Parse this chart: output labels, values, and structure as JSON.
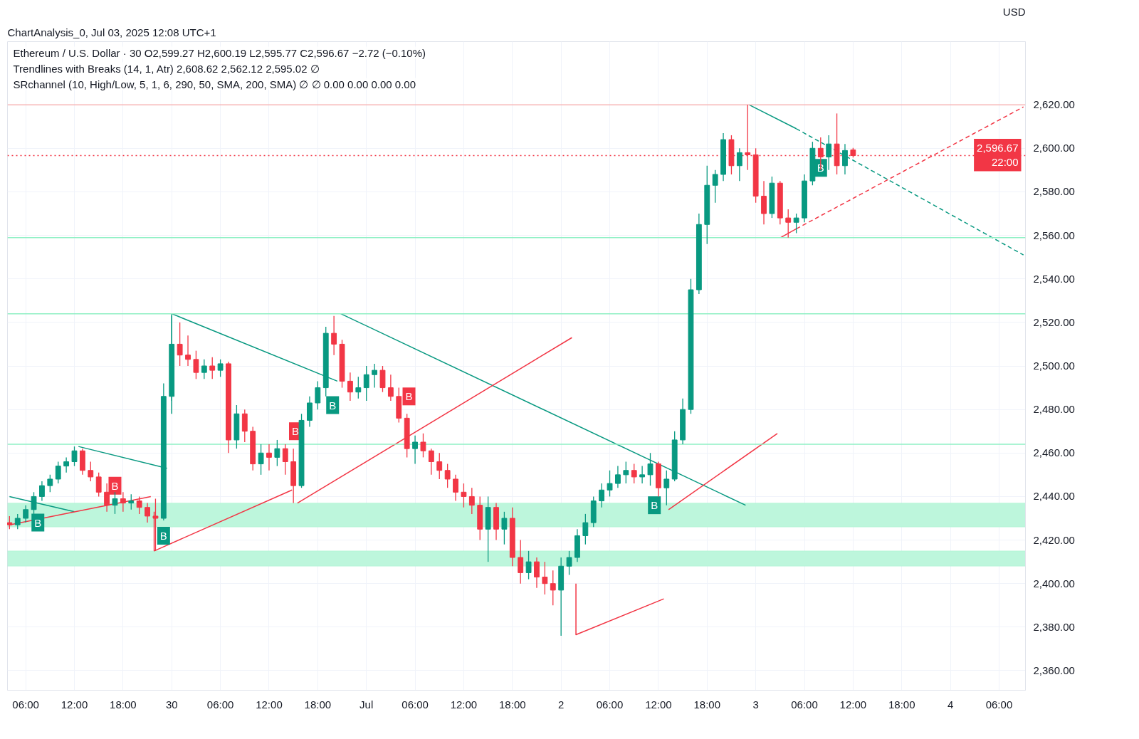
{
  "chart_data": {
    "type": "candlestick",
    "title": "ChartAnalysis_0, Jul 03, 2025 12:08 UTC+1",
    "ylabel": "USD",
    "annotations": [
      "Ethereum / U.S. Dollar · 30  O2,599.27  H2,600.19  L2,595.77  C2,596.67  −2.72 (−0.10%)",
      "Trendlines with Breaks (14, 1, Atr)  2,608.62  2,562.12  2,595.02  ∅",
      "SRchannel (10, High/Low, 5, 1, 6, 290, 50, SMA, 200, SMA)  ∅  ∅  0.00  0.00  0.00  0.00",
      {
        "text": "B",
        "x": "2025-06-29T07:30",
        "y": 2428
      },
      {
        "text": "B",
        "x": "2025-06-29T17:00",
        "y": 2445
      },
      {
        "text": "B",
        "x": "2025-06-29T23:00",
        "y": 2422
      },
      {
        "text": "B",
        "x": "2025-06-30T15:15",
        "y": 2470
      },
      {
        "text": "B",
        "x": "2025-06-30T19:50",
        "y": 2482
      },
      {
        "text": "B",
        "x": "2025-07-01T05:15",
        "y": 2486
      },
      {
        "text": "B",
        "x": "2025-07-02T11:30",
        "y": 2436
      },
      {
        "text": "B",
        "x": "2025-07-03T08:00",
        "y": 2591
      }
    ],
    "x": [
      "2025-06-29T04:00",
      "2025-06-29T05:00",
      "2025-06-29T06:00",
      "2025-06-29T07:00",
      "2025-06-29T08:00",
      "2025-06-29T09:00",
      "2025-06-29T10:00",
      "2025-06-29T11:00",
      "2025-06-29T12:00",
      "2025-06-29T13:00",
      "2025-06-29T14:00",
      "2025-06-29T15:00",
      "2025-06-29T16:00",
      "2025-06-29T17:00",
      "2025-06-29T18:00",
      "2025-06-29T19:00",
      "2025-06-29T20:00",
      "2025-06-29T21:00",
      "2025-06-29T22:00",
      "2025-06-29T23:00",
      "2025-06-30T00:00",
      "2025-06-30T01:00",
      "2025-06-30T02:00",
      "2025-06-30T03:00",
      "2025-06-30T04:00",
      "2025-06-30T05:00",
      "2025-06-30T06:00",
      "2025-06-30T07:00",
      "2025-06-30T08:00",
      "2025-06-30T09:00",
      "2025-06-30T10:00",
      "2025-06-30T11:00",
      "2025-06-30T12:00",
      "2025-06-30T13:00",
      "2025-06-30T14:00",
      "2025-06-30T15:00",
      "2025-06-30T16:00",
      "2025-06-30T17:00",
      "2025-06-30T18:00",
      "2025-06-30T19:00",
      "2025-06-30T20:00",
      "2025-06-30T21:00",
      "2025-06-30T22:00",
      "2025-06-30T23:00",
      "2025-07-01T00:00",
      "2025-07-01T01:00",
      "2025-07-01T02:00",
      "2025-07-01T03:00",
      "2025-07-01T04:00",
      "2025-07-01T05:00",
      "2025-07-01T06:00",
      "2025-07-01T07:00",
      "2025-07-01T08:00",
      "2025-07-01T09:00",
      "2025-07-01T10:00",
      "2025-07-01T11:00",
      "2025-07-01T12:00",
      "2025-07-01T13:00",
      "2025-07-01T14:00",
      "2025-07-01T15:00",
      "2025-07-01T16:00",
      "2025-07-01T17:00",
      "2025-07-01T18:00",
      "2025-07-01T19:00",
      "2025-07-01T20:00",
      "2025-07-01T21:00",
      "2025-07-01T22:00",
      "2025-07-01T23:00",
      "2025-07-02T00:00",
      "2025-07-02T01:00",
      "2025-07-02T02:00",
      "2025-07-02T03:00",
      "2025-07-02T04:00",
      "2025-07-02T05:00",
      "2025-07-02T06:00",
      "2025-07-02T07:00",
      "2025-07-02T08:00",
      "2025-07-02T09:00",
      "2025-07-02T10:00",
      "2025-07-02T11:00",
      "2025-07-02T12:00",
      "2025-07-02T13:00",
      "2025-07-02T14:00",
      "2025-07-02T15:00",
      "2025-07-02T16:00",
      "2025-07-02T17:00",
      "2025-07-02T18:00",
      "2025-07-02T19:00",
      "2025-07-02T20:00",
      "2025-07-02T21:00",
      "2025-07-02T22:00",
      "2025-07-02T23:00",
      "2025-07-03T00:00",
      "2025-07-03T01:00",
      "2025-07-03T02:00",
      "2025-07-03T03:00",
      "2025-07-03T04:00",
      "2025-07-03T05:00",
      "2025-07-03T06:00",
      "2025-07-03T07:00",
      "2025-07-03T08:00",
      "2025-07-03T09:00",
      "2025-07-03T10:00",
      "2025-07-03T11:00",
      "2025-07-03T12:00"
    ],
    "ohlc": [
      [
        2428,
        2431,
        2425,
        2427
      ],
      [
        2427,
        2432,
        2425,
        2430
      ],
      [
        2430,
        2436,
        2428,
        2434
      ],
      [
        2434,
        2442,
        2432,
        2440
      ],
      [
        2440,
        2447,
        2438,
        2445
      ],
      [
        2445,
        2450,
        2442,
        2448
      ],
      [
        2448,
        2456,
        2446,
        2454
      ],
      [
        2454,
        2458,
        2451,
        2456
      ],
      [
        2456,
        2463,
        2454,
        2461
      ],
      [
        2461,
        2462,
        2450,
        2452
      ],
      [
        2452,
        2456,
        2447,
        2449
      ],
      [
        2449,
        2451,
        2440,
        2442
      ],
      [
        2442,
        2446,
        2433,
        2436
      ],
      [
        2436,
        2442,
        2432,
        2439
      ],
      [
        2439,
        2442,
        2433,
        2437
      ],
      [
        2437,
        2441,
        2434,
        2438
      ],
      [
        2438,
        2440,
        2432,
        2435
      ],
      [
        2435,
        2437,
        2428,
        2431
      ],
      [
        2431,
        2439,
        2415,
        2430
      ],
      [
        2430,
        2492,
        2429,
        2486
      ],
      [
        2486,
        2523,
        2484,
        2510
      ],
      [
        2510,
        2520,
        2500,
        2505
      ],
      [
        2505,
        2514,
        2500,
        2503
      ],
      [
        2503,
        2507,
        2494,
        2497
      ],
      [
        2497,
        2503,
        2494,
        2500
      ],
      [
        2500,
        2504,
        2494,
        2498
      ],
      [
        2498,
        2503,
        2495,
        2501
      ],
      [
        2501,
        2502,
        2460,
        2466
      ],
      [
        2466,
        2482,
        2462,
        2478
      ],
      [
        2478,
        2480,
        2465,
        2470
      ],
      [
        2470,
        2472,
        2452,
        2455
      ],
      [
        2455,
        2464,
        2450,
        2460
      ],
      [
        2460,
        2464,
        2452,
        2458
      ],
      [
        2458,
        2466,
        2454,
        2462
      ],
      [
        2462,
        2464,
        2450,
        2456
      ],
      [
        2456,
        2462,
        2437,
        2445
      ],
      [
        2445,
        2478,
        2444,
        2475
      ],
      [
        2475,
        2486,
        2472,
        2483
      ],
      [
        2483,
        2493,
        2480,
        2490
      ],
      [
        2490,
        2518,
        2486,
        2515
      ],
      [
        2515,
        2523,
        2505,
        2510
      ],
      [
        2510,
        2512,
        2490,
        2493
      ],
      [
        2493,
        2497,
        2484,
        2488
      ],
      [
        2488,
        2495,
        2485,
        2490
      ],
      [
        2490,
        2500,
        2484,
        2496
      ],
      [
        2496,
        2501,
        2490,
        2498
      ],
      [
        2498,
        2500,
        2488,
        2490
      ],
      [
        2490,
        2496,
        2484,
        2486
      ],
      [
        2486,
        2490,
        2474,
        2476
      ],
      [
        2476,
        2478,
        2458,
        2462
      ],
      [
        2462,
        2468,
        2455,
        2465
      ],
      [
        2465,
        2469,
        2458,
        2461
      ],
      [
        2461,
        2462,
        2450,
        2456
      ],
      [
        2456,
        2460,
        2448,
        2452
      ],
      [
        2452,
        2455,
        2444,
        2448
      ],
      [
        2448,
        2450,
        2438,
        2442
      ],
      [
        2442,
        2446,
        2435,
        2440
      ],
      [
        2440,
        2444,
        2432,
        2436
      ],
      [
        2436,
        2440,
        2420,
        2425
      ],
      [
        2425,
        2440,
        2410,
        2435
      ],
      [
        2435,
        2437,
        2420,
        2425
      ],
      [
        2425,
        2433,
        2418,
        2430
      ],
      [
        2430,
        2435,
        2408,
        2412
      ],
      [
        2412,
        2420,
        2400,
        2405
      ],
      [
        2405,
        2415,
        2402,
        2410
      ],
      [
        2410,
        2412,
        2398,
        2403
      ],
      [
        2403,
        2410,
        2395,
        2400
      ],
      [
        2400,
        2406,
        2390,
        2397
      ],
      [
        2397,
        2412,
        2376,
        2408
      ],
      [
        2408,
        2415,
        2404,
        2412
      ],
      [
        2412,
        2425,
        2410,
        2422
      ],
      [
        2422,
        2432,
        2418,
        2428
      ],
      [
        2428,
        2440,
        2426,
        2438
      ],
      [
        2438,
        2446,
        2435,
        2443
      ],
      [
        2443,
        2452,
        2440,
        2446
      ],
      [
        2446,
        2454,
        2444,
        2450
      ],
      [
        2450,
        2456,
        2446,
        2452
      ],
      [
        2452,
        2455,
        2446,
        2449
      ],
      [
        2449,
        2454,
        2446,
        2450
      ],
      [
        2450,
        2460,
        2445,
        2455
      ],
      [
        2455,
        2456,
        2440,
        2444
      ],
      [
        2444,
        2452,
        2436,
        2448
      ],
      [
        2448,
        2470,
        2447,
        2466
      ],
      [
        2466,
        2485,
        2464,
        2480
      ],
      [
        2480,
        2540,
        2478,
        2535
      ],
      [
        2535,
        2570,
        2533,
        2565
      ],
      [
        2565,
        2592,
        2556,
        2583
      ],
      [
        2583,
        2590,
        2575,
        2588
      ],
      [
        2588,
        2607,
        2585,
        2604
      ],
      [
        2604,
        2606,
        2588,
        2592
      ],
      [
        2592,
        2600,
        2585,
        2598
      ],
      [
        2598,
        2620,
        2590,
        2597
      ],
      [
        2597,
        2600,
        2575,
        2578
      ],
      [
        2578,
        2585,
        2565,
        2570
      ],
      [
        2570,
        2587,
        2568,
        2584
      ],
      [
        2584,
        2585,
        2565,
        2568
      ],
      [
        2568,
        2572,
        2559,
        2566
      ],
      [
        2566,
        2570,
        2561,
        2568
      ],
      [
        2568,
        2588,
        2566,
        2585
      ],
      [
        2585,
        2603,
        2583,
        2600
      ],
      [
        2600,
        2605,
        2590,
        2596
      ],
      [
        2596,
        2606,
        2590,
        2602
      ],
      [
        2602,
        2616,
        2588,
        2592
      ],
      [
        2592,
        2602,
        2588,
        2599
      ],
      [
        2599.27,
        2600.19,
        2595.77,
        2596.67
      ]
    ],
    "series": [
      {
        "type": "line",
        "color": "#089981",
        "x": [
          "2025-06-29T04:00",
          "2025-06-29T12:00"
        ],
        "values": [
          2440,
          2433
        ]
      },
      {
        "type": "line",
        "color": "#089981",
        "x": [
          "2025-06-29T12:30",
          "2025-06-29T23:25"
        ],
        "values": [
          2463,
          2453
        ]
      },
      {
        "type": "line",
        "color": "#089981",
        "x": [
          "2025-06-30T00:00",
          "2025-06-30T00:00",
          "2025-06-30T20:25"
        ],
        "values": [
          2478,
          2524,
          2493
        ]
      },
      {
        "type": "line",
        "color": "#089981",
        "x": [
          "2025-06-30T20:50",
          "2025-07-02T22:45"
        ],
        "values": [
          2524,
          2436
        ]
      },
      {
        "type": "line",
        "color": "#089981",
        "x": [
          "2025-07-02T23:10",
          "2025-07-03T05:00"
        ],
        "values": [
          2620,
          2609
        ]
      },
      {
        "type": "line",
        "color": "#089981",
        "line_style": "dashed",
        "x": [
          "2025-07-03T05:00",
          "2025-07-04T09:00"
        ],
        "values": [
          2609,
          2551
        ]
      },
      {
        "type": "line",
        "color": "#f23645",
        "x": [
          "2025-06-29T04:00",
          "2025-06-29T21:25"
        ],
        "values": [
          2427,
          2440
        ]
      },
      {
        "type": "line",
        "color": "#f23645",
        "x": [
          "2025-06-29T21:50",
          "2025-06-29T21:50",
          "2025-06-30T14:50"
        ],
        "values": [
          2433,
          2415,
          2443
        ]
      },
      {
        "type": "line",
        "color": "#f23645",
        "x": [
          "2025-06-30T15:30",
          "2025-07-02T01:20"
        ],
        "values": [
          2437,
          2513
        ]
      },
      {
        "type": "line",
        "color": "#f23645",
        "x": [
          "2025-07-02T01:50",
          "2025-07-02T01:50",
          "2025-07-02T12:40"
        ],
        "values": [
          2400,
          2376.5,
          2393
        ]
      },
      {
        "type": "line",
        "color": "#f23645",
        "x": [
          "2025-07-02T13:15",
          "2025-07-03T02:40"
        ],
        "values": [
          2434,
          2469
        ]
      },
      {
        "type": "line",
        "color": "#f23645",
        "x": [
          "2025-07-03T03:05",
          "2025-07-03T05:00"
        ],
        "values": [
          2559,
          2563
        ]
      },
      {
        "type": "line",
        "color": "#f23645",
        "line_style": "dashed",
        "x": [
          "2025-07-03T05:00",
          "2025-07-04T09:00"
        ],
        "values": [
          2563,
          2619
        ]
      }
    ],
    "ref_lines": [
      {
        "axis": "y",
        "value": 2620,
        "color": "#f7b5b5",
        "line_style": "solid"
      },
      {
        "axis": "y",
        "value": 2559,
        "color": "#8ff0c4",
        "line_style": "solid"
      },
      {
        "axis": "y",
        "value": 2524,
        "color": "#8ff0c4",
        "line_style": "solid"
      },
      {
        "axis": "y",
        "value": 2464,
        "color": "#8ff0c4",
        "line_style": "solid"
      },
      {
        "axis": "y",
        "value": 2596.67,
        "color": "#f23645",
        "line_style": "dotted",
        "label": "2,596.67\n22:00"
      }
    ],
    "bands": [
      {
        "axis": "y",
        "from": 2426,
        "to": 2437,
        "color": "#b9f6da"
      },
      {
        "axis": "y",
        "from": 2408,
        "to": 2415,
        "color": "#b9f6da"
      }
    ],
    "xlim": [
      "2025-06-29T03:45",
      "2025-07-04T09:15"
    ],
    "xticks": [
      {
        "value": "2025-06-29T06:00",
        "label": "06:00"
      },
      {
        "value": "2025-06-29T12:00",
        "label": "12:00"
      },
      {
        "value": "2025-06-29T18:00",
        "label": "18:00"
      },
      {
        "value": "2025-06-30T00:00",
        "label": "30"
      },
      {
        "value": "2025-06-30T06:00",
        "label": "06:00"
      },
      {
        "value": "2025-06-30T12:00",
        "label": "12:00"
      },
      {
        "value": "2025-06-30T18:00",
        "label": "18:00"
      },
      {
        "value": "2025-07-01T00:00",
        "label": "Jul"
      },
      {
        "value": "2025-07-01T06:00",
        "label": "06:00"
      },
      {
        "value": "2025-07-01T12:00",
        "label": "12:00"
      },
      {
        "value": "2025-07-01T18:00",
        "label": "18:00"
      },
      {
        "value": "2025-07-02T00:00",
        "label": "2"
      },
      {
        "value": "2025-07-02T06:00",
        "label": "06:00"
      },
      {
        "value": "2025-07-02T12:00",
        "label": "12:00"
      },
      {
        "value": "2025-07-02T18:00",
        "label": "18:00"
      },
      {
        "value": "2025-07-03T00:00",
        "label": "3"
      },
      {
        "value": "2025-07-03T06:00",
        "label": "06:00"
      },
      {
        "value": "2025-07-03T12:00",
        "label": "12:00"
      },
      {
        "value": "2025-07-03T18:00",
        "label": "18:00"
      },
      {
        "value": "2025-07-04T00:00",
        "label": "4"
      },
      {
        "value": "2025-07-04T06:00",
        "label": "06:00"
      }
    ],
    "ylim": [
      2351,
      2649
    ],
    "yticks": [
      {
        "value": 2360,
        "label": "2,360.00"
      },
      {
        "value": 2380,
        "label": "2,380.00"
      },
      {
        "value": 2400,
        "label": "2,400.00"
      },
      {
        "value": 2420,
        "label": "2,420.00"
      },
      {
        "value": 2440,
        "label": "2,440.00"
      },
      {
        "value": 2460,
        "label": "2,460.00"
      },
      {
        "value": 2480,
        "label": "2,480.00"
      },
      {
        "value": 2500,
        "label": "2,500.00"
      },
      {
        "value": 2520,
        "label": "2,520.00"
      },
      {
        "value": 2540,
        "label": "2,540.00"
      },
      {
        "value": 2560,
        "label": "2,560.00"
      },
      {
        "value": 2580,
        "label": "2,580.00"
      },
      {
        "value": 2600,
        "label": "2,600.00"
      },
      {
        "value": 2620,
        "label": "2,620.00"
      }
    ],
    "grid": true
  }
}
